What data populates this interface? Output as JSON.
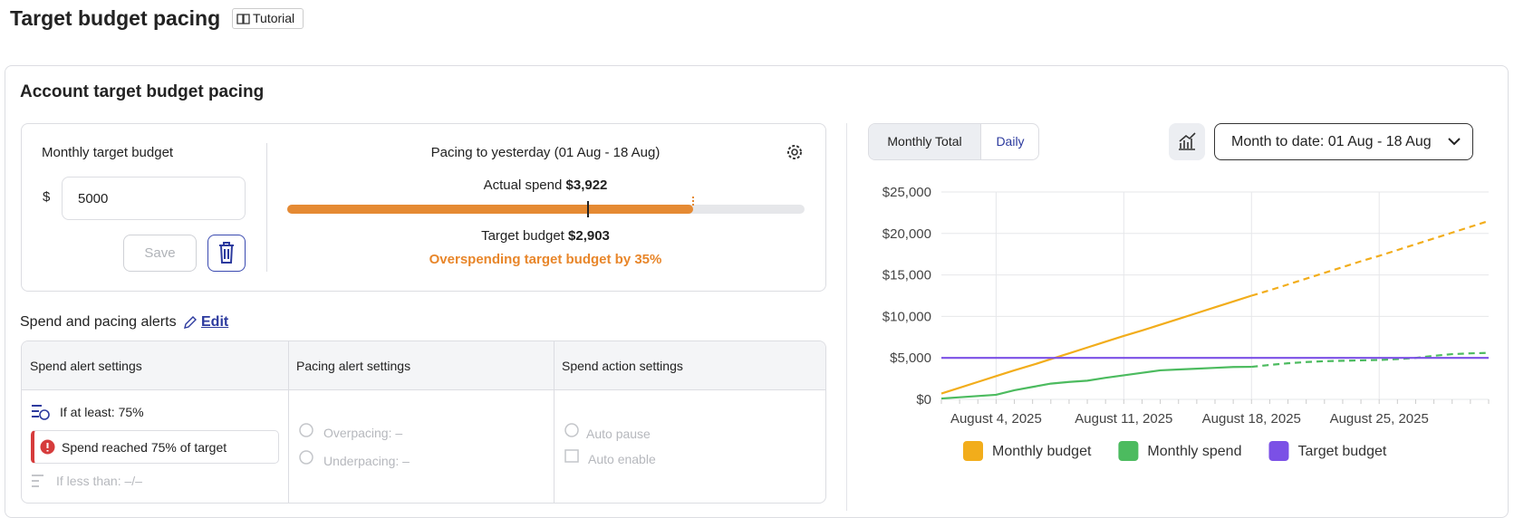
{
  "header": {
    "title": "Target budget pacing",
    "tutorial": "Tutorial"
  },
  "card": {
    "title": "Account target budget pacing"
  },
  "budget": {
    "label": "Monthly target budget",
    "currency": "$",
    "value": 5000,
    "save": "Save"
  },
  "pacing": {
    "title": "Pacing to yesterday (01 Aug - 18 Aug)",
    "actual": {
      "label": "Actual spend",
      "value": 3922,
      "value_label": "$3,922"
    },
    "target": {
      "label": "Target budget",
      "value": 2903,
      "value_label": "$2,903"
    },
    "warning": "Overspending target budget by 35%"
  },
  "alerts": {
    "title": "Spend and pacing alerts",
    "edit": "Edit",
    "columns": [
      "Spend alert settings",
      "Pacing alert settings",
      "Spend action settings"
    ],
    "spend": {
      "at_least": "If at least: 75%",
      "notice": "Spend reached 75% of target",
      "less_than": "If less than: –/–"
    },
    "pacing": {
      "over": "Overpacing: –",
      "under": "Underpacing: –"
    },
    "actions": {
      "pause": "Auto pause",
      "enable": "Auto enable"
    }
  },
  "controls": {
    "tabs": [
      "Monthly Total",
      "Daily"
    ],
    "range": "Month to date: 01 Aug - 18 Aug"
  },
  "chart_data": {
    "type": "line",
    "x": [
      "2025-08-01",
      "2025-08-02",
      "2025-08-03",
      "2025-08-04",
      "2025-08-05",
      "2025-08-06",
      "2025-08-07",
      "2025-08-08",
      "2025-08-09",
      "2025-08-10",
      "2025-08-11",
      "2025-08-12",
      "2025-08-13",
      "2025-08-14",
      "2025-08-15",
      "2025-08-16",
      "2025-08-17",
      "2025-08-18",
      "2025-08-19",
      "2025-08-20",
      "2025-08-21",
      "2025-08-22",
      "2025-08-23",
      "2025-08-24",
      "2025-08-25",
      "2025-08-26",
      "2025-08-27",
      "2025-08-28",
      "2025-08-29",
      "2025-08-30",
      "2025-08-31"
    ],
    "xlim": [
      "2025-08-01",
      "2025-08-31"
    ],
    "xticks": [
      {
        "value": "2025-08-04",
        "label": "August 4, 2025"
      },
      {
        "value": "2025-08-11",
        "label": "August 11, 2025"
      },
      {
        "value": "2025-08-18",
        "label": "August 18, 2025"
      },
      {
        "value": "2025-08-25",
        "label": "August 25, 2025"
      }
    ],
    "ylim": [
      0,
      25000
    ],
    "yticks": [
      {
        "value": 0,
        "label": "$0"
      },
      {
        "value": 5000,
        "label": "$5,000"
      },
      {
        "value": 10000,
        "label": "$10,000"
      },
      {
        "value": 15000,
        "label": "$15,000"
      },
      {
        "value": 20000,
        "label": "$20,000"
      },
      {
        "value": 25000,
        "label": "$25,000"
      }
    ],
    "grid": true,
    "legend": "bottom",
    "series": [
      {
        "name": "Monthly budget",
        "color": "#f2ad1b",
        "dashed_from": "2025-08-18",
        "values": [
          700,
          1400,
          2100,
          2800,
          3500,
          4150,
          4850,
          5550,
          6250,
          6950,
          7650,
          8300,
          9000,
          9700,
          10400,
          11100,
          11800,
          12500,
          13150,
          13850,
          14550,
          15250,
          15950,
          16650,
          17300,
          18000,
          18700,
          19400,
          20100,
          20800,
          21500
        ]
      },
      {
        "name": "Monthly spend",
        "color": "#4cbb5f",
        "dashed_from": "2025-08-18",
        "values": [
          100,
          250,
          400,
          550,
          1100,
          1500,
          1900,
          2100,
          2250,
          2600,
          2900,
          3200,
          3500,
          3600,
          3700,
          3800,
          3900,
          3922,
          4150,
          4350,
          4500,
          4600,
          4650,
          4700,
          4750,
          4850,
          5000,
          5250,
          5450,
          5550,
          5600
        ]
      },
      {
        "name": "Target budget",
        "color": "#7b50e6",
        "values": [
          5000,
          5000,
          5000,
          5000,
          5000,
          5000,
          5000,
          5000,
          5000,
          5000,
          5000,
          5000,
          5000,
          5000,
          5000,
          5000,
          5000,
          5000,
          5000,
          5000,
          5000,
          5000,
          5000,
          5000,
          5000,
          5000,
          5000,
          5000,
          5000,
          5000,
          5000
        ]
      }
    ]
  }
}
